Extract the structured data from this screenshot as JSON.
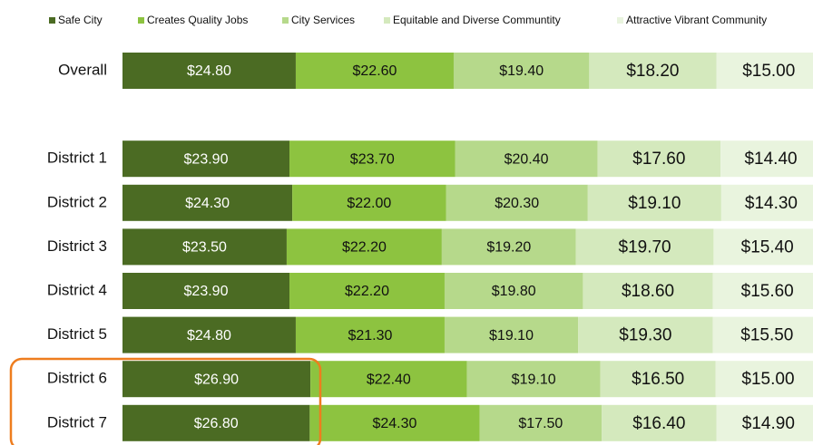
{
  "chart_data": {
    "type": "stacked-bar-horizontal",
    "categories": [
      "Overall",
      null,
      "District 1",
      "District 2",
      "District 3",
      "District 4",
      "District 5",
      "District 6",
      "District 7"
    ],
    "series": [
      {
        "name": "Safe City",
        "color": "#4b6b23",
        "values": [
          24.8,
          null,
          23.9,
          24.3,
          23.5,
          23.9,
          24.8,
          26.9,
          26.8
        ],
        "value_labels": [
          "$24.80",
          null,
          "$23.90",
          "$24.30",
          "$23.50",
          "$23.90",
          "$24.80",
          "$26.90",
          "$26.80"
        ]
      },
      {
        "name": "Creates Quality Jobs",
        "color": "#8dc340",
        "values": [
          22.6,
          null,
          23.7,
          22.0,
          22.2,
          22.2,
          21.3,
          22.4,
          24.3
        ],
        "value_labels": [
          "$22.60",
          null,
          "$23.70",
          "$22.00",
          "$22.20",
          "$22.20",
          "$21.30",
          "$22.40",
          "$24.30"
        ]
      },
      {
        "name": "City Services",
        "color": "#b6d98b",
        "values": [
          19.4,
          null,
          20.4,
          20.3,
          19.2,
          19.8,
          19.1,
          19.1,
          17.5
        ],
        "value_labels": [
          "$19.40",
          null,
          "$20.40",
          "$20.30",
          "$19.20",
          "$19.80",
          "$19.10",
          "$19.10",
          "$17.50"
        ]
      },
      {
        "name": "Equitable and Diverse Communtity",
        "color": "#d4e9bd",
        "values": [
          18.2,
          null,
          17.6,
          19.1,
          19.7,
          18.6,
          19.3,
          16.5,
          16.4
        ],
        "value_labels": [
          "$18.20",
          null,
          "$17.60",
          "$19.10",
          "$19.70",
          "$18.60",
          "$19.30",
          "$16.50",
          "$16.40"
        ]
      },
      {
        "name": "Attractive Vibrant Community",
        "color": "#e9f4de",
        "values": [
          15.0,
          null,
          14.4,
          14.3,
          15.4,
          15.6,
          15.5,
          15.0,
          14.9
        ],
        "value_labels": [
          "$15.00",
          null,
          "$14.40",
          "$14.30",
          "$15.40",
          "$15.60",
          "$15.50",
          "$15.00",
          "$14.90"
        ]
      }
    ]
  }
}
